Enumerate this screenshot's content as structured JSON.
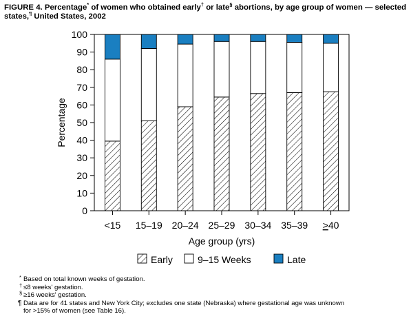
{
  "title": {
    "part1": "FIGURE 4. Percentage",
    "m1": "*",
    "part2": " of women who obtained early",
    "m2": "†",
    "part3": " or late",
    "m3": "§",
    "part4": " abortions, by age group of women — selected states,",
    "m4": "¶",
    "part5": " United States, 2002"
  },
  "chart_data": {
    "type": "bar",
    "stacked": true,
    "categories": [
      "<15",
      "15–19",
      "20–24",
      "25–29",
      "30–34",
      "35–39",
      "≥40"
    ],
    "series": [
      {
        "name": "Early",
        "values": [
          39.5,
          51,
          59,
          64.5,
          66.5,
          67,
          67.5
        ],
        "fill": "hatched"
      },
      {
        "name": "9–15 Weeks",
        "values": [
          46.5,
          41,
          35.5,
          31.5,
          29.5,
          28.5,
          27.5
        ],
        "fill": "#ffffff"
      },
      {
        "name": "Late",
        "values": [
          14,
          8,
          5.5,
          4,
          4,
          4.5,
          5
        ],
        "fill": "#1a7fc1"
      }
    ],
    "xlabel": "Age group (yrs)",
    "ylabel": "Percentage",
    "ylim": [
      0,
      100
    ],
    "yticks": [
      0,
      10,
      20,
      30,
      40,
      50,
      60,
      70,
      80,
      90,
      100
    ],
    "grid": false,
    "legend_position": "bottom"
  },
  "notes": [
    {
      "marker": "*",
      "text": "Based on total known weeks of gestation."
    },
    {
      "marker": "†",
      "text": "≤8 weeks' gestation."
    },
    {
      "marker": "§",
      "text": "≥16 weeks' gestation."
    },
    {
      "marker": "¶",
      "text": "Data are for 41 states and New York City; excludes one state (Nebraska) where gestational age was unknown"
    },
    {
      "marker": "",
      "text": "for >15% of women (see Table 16)."
    }
  ],
  "colors": {
    "late": "#1a7fc1",
    "axis": "#000000",
    "early_hatch": "#000000"
  }
}
